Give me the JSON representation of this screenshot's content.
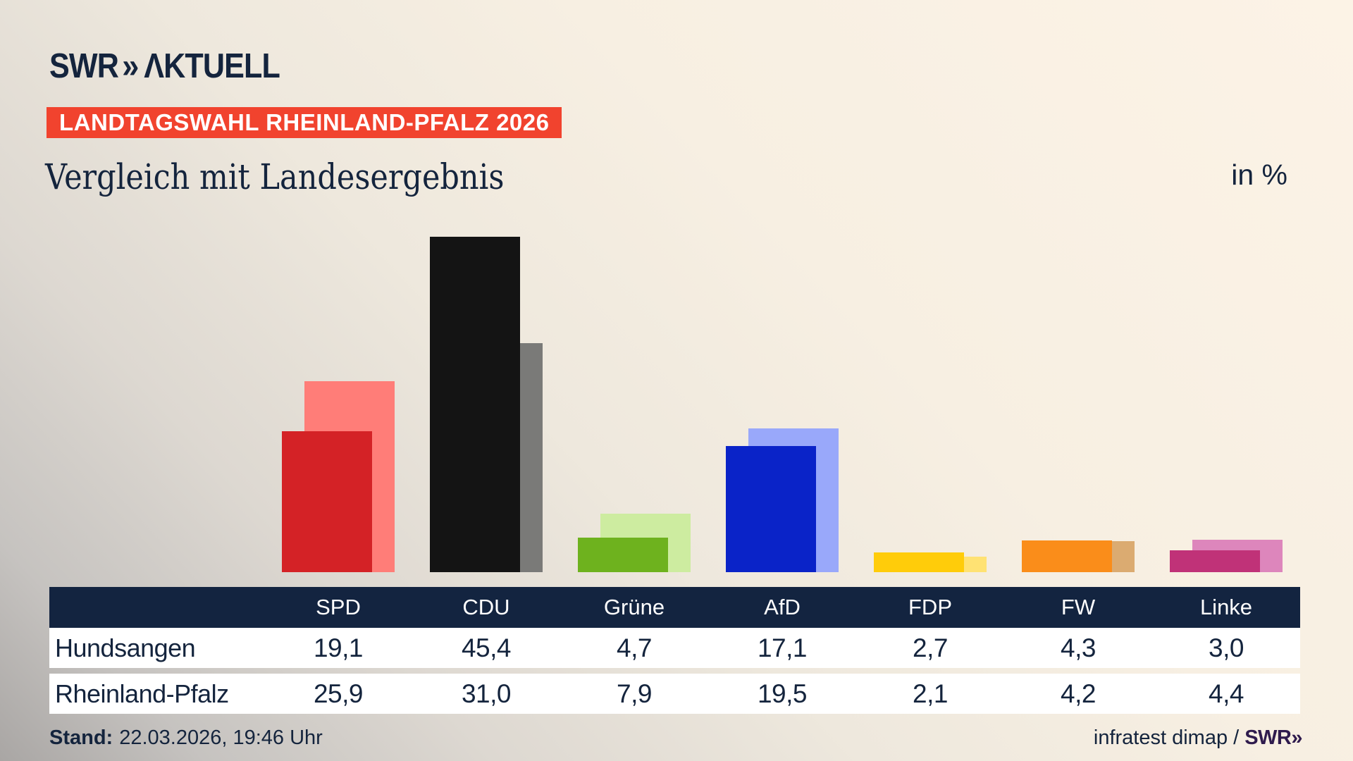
{
  "brand": {
    "logo_swr": "SWR",
    "logo_chevron": "»",
    "logo_suffix": "ΛKTUELL"
  },
  "header": {
    "badge": "LANDTAGSWAHL RHEINLAND-PFALZ 2026",
    "title": "Vergleich mit Landesergebnis",
    "unit_label": "in %"
  },
  "chart_data": {
    "type": "bar",
    "title": "Vergleich mit Landesergebnis",
    "unit": "in %",
    "categories": [
      "SPD",
      "CDU",
      "Grüne",
      "AfD",
      "FDP",
      "FW",
      "Linke"
    ],
    "series": [
      {
        "name": "Hundsangen",
        "role": "foreground",
        "values": [
          19.1,
          45.4,
          4.7,
          17.1,
          2.7,
          4.3,
          3.0
        ],
        "colors": [
          "#d42226",
          "#141414",
          "#6eb21e",
          "#0a23c8",
          "#ffcc0a",
          "#fa8d1a",
          "#c03278"
        ]
      },
      {
        "name": "Rheinland-Pfalz",
        "role": "background",
        "values": [
          25.9,
          31.0,
          7.9,
          19.5,
          2.1,
          4.2,
          4.4
        ],
        "colors": [
          "#ff7d78",
          "#7a7a78",
          "#cdeca0",
          "#99a8fa",
          "#ffe273",
          "#dbab71",
          "#dd86bc"
        ]
      }
    ],
    "ylim": [
      0,
      50
    ],
    "grid": false,
    "axes_hidden": true,
    "legend_position": "table-below"
  },
  "table": {
    "columns": [
      "SPD",
      "CDU",
      "Grüne",
      "AfD",
      "FDP",
      "FW",
      "Linke"
    ],
    "rows": [
      {
        "label": "Hundsangen",
        "values": [
          "19,1",
          "45,4",
          "4,7",
          "17,1",
          "2,7",
          "4,3",
          "3,0"
        ]
      },
      {
        "label": "Rheinland-Pfalz",
        "values": [
          "25,9",
          "31,0",
          "7,9",
          "19,5",
          "2,1",
          "4,2",
          "4,4"
        ]
      }
    ]
  },
  "footer": {
    "stand_label": "Stand:",
    "stand_value": "22.03.2026, 19:46 Uhr",
    "source": "infratest dimap /",
    "source_logo": "SWR»"
  },
  "colors": {
    "badge_bg": "#f1432e",
    "navy_text": "#14243d",
    "table_header_bg": "#132440",
    "footer_logo": "#2f1b4d"
  }
}
